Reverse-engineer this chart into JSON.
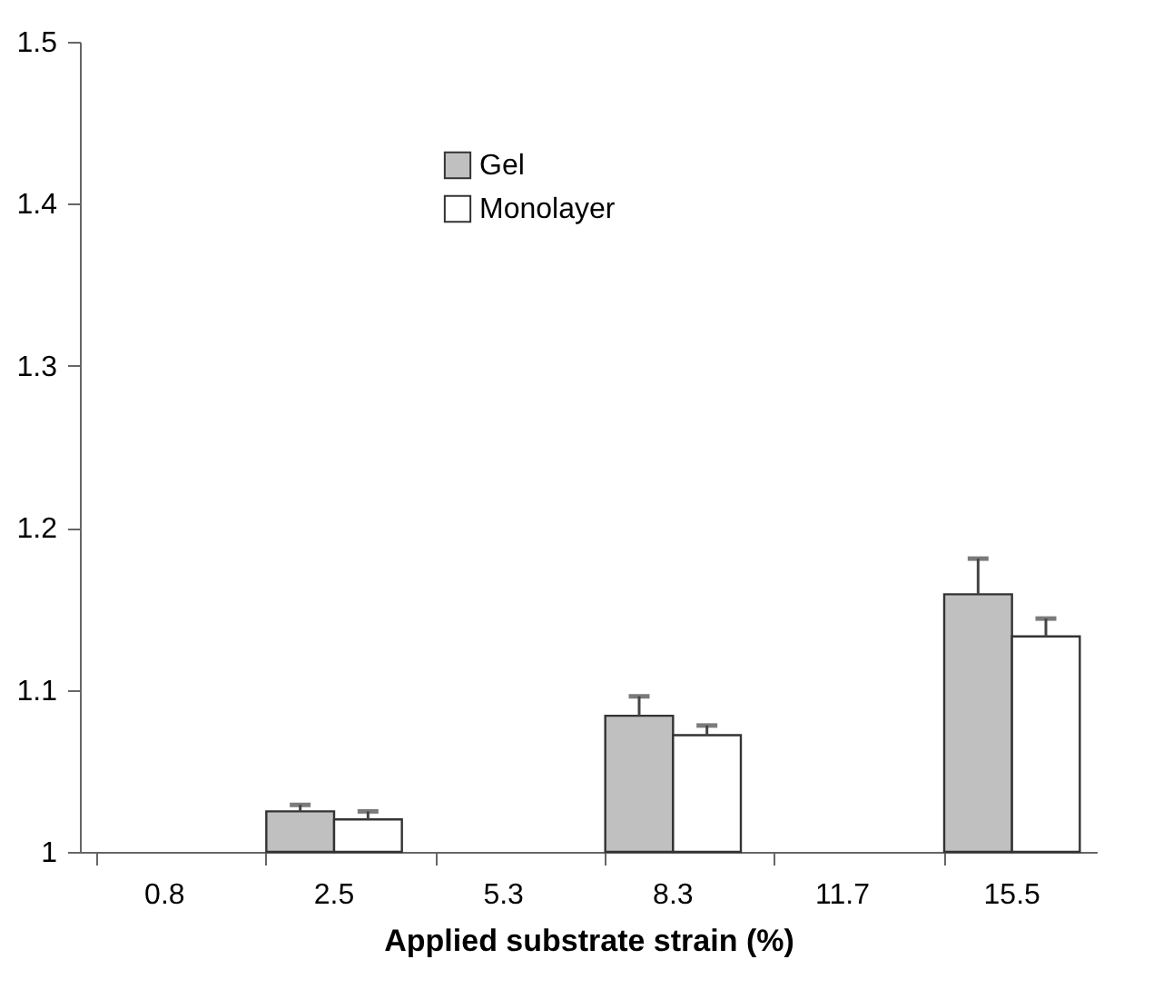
{
  "chart_data": {
    "type": "bar",
    "xlabel": "Applied substrate strain (%)",
    "categories": [
      "0.8",
      "2.5",
      "5.3",
      "8.3",
      "11.7",
      "15.5"
    ],
    "series": [
      {
        "name": "Gel",
        "color": "#c0c0c0",
        "values": [
          null,
          1.025,
          null,
          1.084,
          null,
          1.159
        ],
        "errors": [
          null,
          [
            1.025,
            1.029
          ],
          null,
          [
            1.084,
            1.096
          ],
          null,
          [
            1.159,
            1.181
          ]
        ]
      },
      {
        "name": "Monolayer",
        "color": "#ffffff",
        "values": [
          null,
          1.02,
          null,
          1.072,
          null,
          1.133
        ],
        "errors": [
          null,
          [
            1.02,
            1.025
          ],
          null,
          [
            1.072,
            1.078
          ],
          null,
          [
            1.133,
            1.144
          ]
        ]
      }
    ],
    "ylim": [
      1,
      1.5
    ],
    "yticks": [
      1,
      1.1,
      1.2,
      1.3,
      1.4,
      1.5
    ],
    "grid": false,
    "legend": "top left"
  }
}
